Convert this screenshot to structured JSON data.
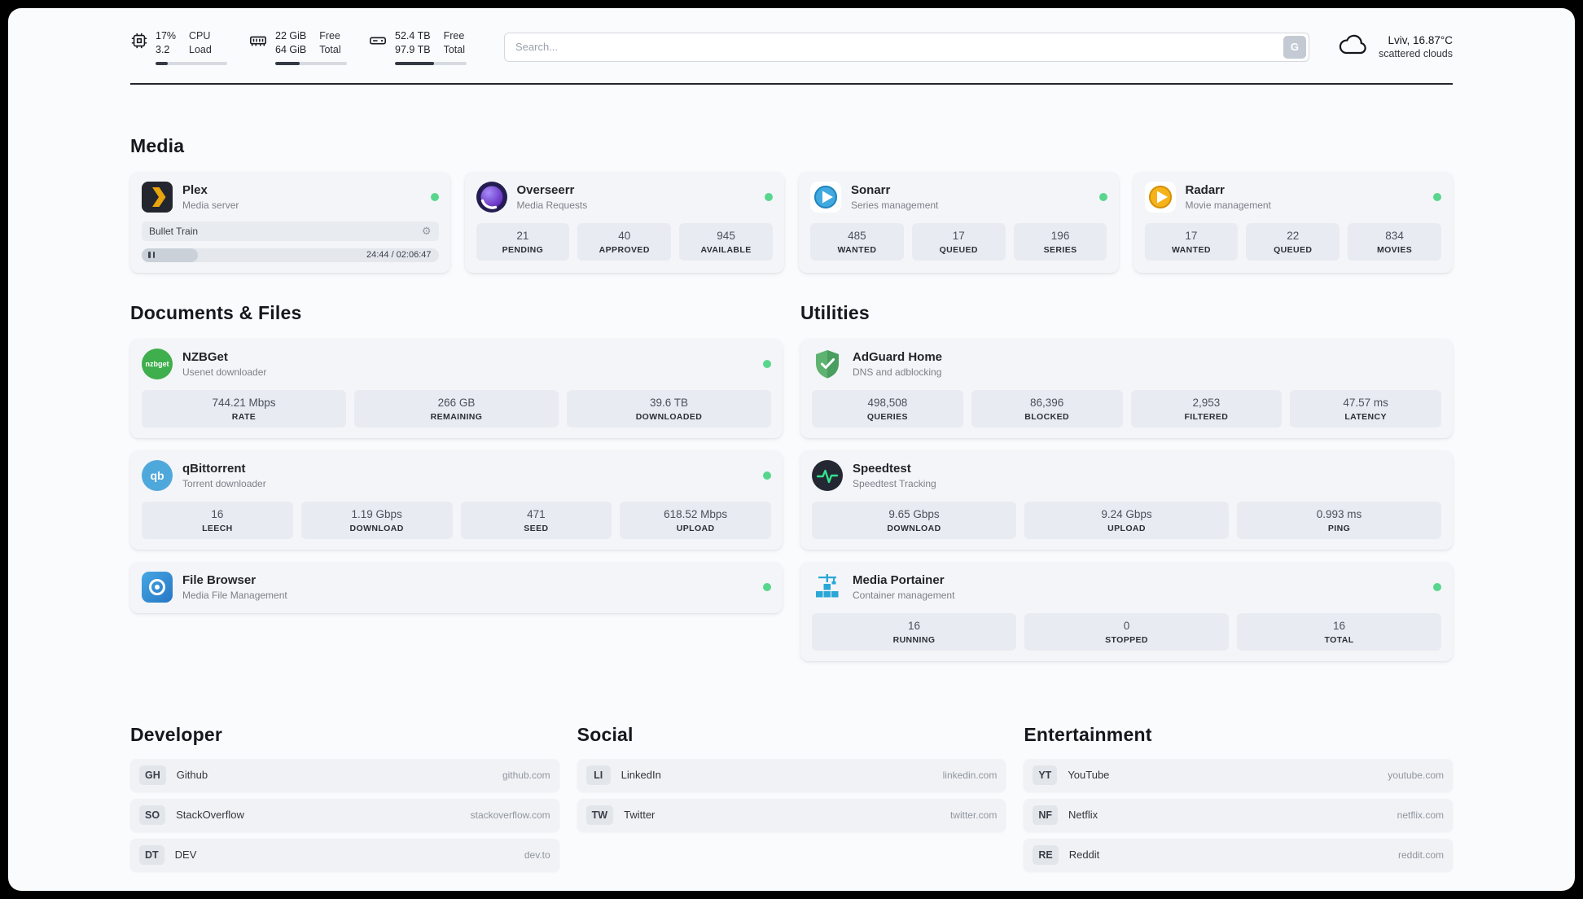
{
  "header": {
    "cpu": {
      "value_top": "17%",
      "value_bottom": "3.2",
      "label_top": "CPU",
      "label_bottom": "Load",
      "progress_percent": 17
    },
    "ram": {
      "value_top": "22 GiB",
      "value_bottom": "64 GiB",
      "label_top": "Free",
      "label_bottom": "Total",
      "progress_percent": 34
    },
    "disk": {
      "value_top": "52.4 TB",
      "value_bottom": "97.9 TB",
      "label_top": "Free",
      "label_bottom": "Total",
      "progress_percent": 54
    },
    "search": {
      "placeholder": "Search...",
      "provider_label": "G"
    },
    "weather": {
      "location": "Lviv, 16.87°C",
      "condition": "scattered clouds"
    }
  },
  "media": {
    "heading": "Media",
    "plex": {
      "name": "Plex",
      "description": "Media server",
      "now_playing": "Bullet Train",
      "time_display": "24:44 / 02:06:47",
      "progress_percent": 19
    },
    "cards": [
      {
        "name": "Overseerr",
        "description": "Media Requests",
        "stats": [
          {
            "value": "21",
            "label": "PENDING"
          },
          {
            "value": "40",
            "label": "APPROVED"
          },
          {
            "value": "945",
            "label": "AVAILABLE"
          }
        ]
      },
      {
        "name": "Sonarr",
        "description": "Series management",
        "stats": [
          {
            "value": "485",
            "label": "WANTED"
          },
          {
            "value": "17",
            "label": "QUEUED"
          },
          {
            "value": "196",
            "label": "SERIES"
          }
        ]
      },
      {
        "name": "Radarr",
        "description": "Movie management",
        "stats": [
          {
            "value": "17",
            "label": "WANTED"
          },
          {
            "value": "22",
            "label": "QUEUED"
          },
          {
            "value": "834",
            "label": "MOVIES"
          }
        ]
      }
    ]
  },
  "documents": {
    "heading": "Documents & Files",
    "cards": [
      {
        "name": "NZBGet",
        "description": "Usenet downloader",
        "stats": [
          {
            "value": "744.21 Mbps",
            "label": "RATE"
          },
          {
            "value": "266 GB",
            "label": "REMAINING"
          },
          {
            "value": "39.6 TB",
            "label": "DOWNLOADED"
          }
        ]
      },
      {
        "name": "qBittorrent",
        "description": "Torrent downloader",
        "stats": [
          {
            "value": "16",
            "label": "LEECH"
          },
          {
            "value": "1.19 Gbps",
            "label": "DOWNLOAD"
          },
          {
            "value": "471",
            "label": "SEED"
          },
          {
            "value": "618.52 Mbps",
            "label": "UPLOAD"
          }
        ]
      },
      {
        "name": "File Browser",
        "description": "Media File Management",
        "stats": []
      }
    ]
  },
  "utilities": {
    "heading": "Utilities",
    "cards": [
      {
        "name": "AdGuard Home",
        "description": "DNS and adblocking",
        "stats": [
          {
            "value": "498,508",
            "label": "QUERIES"
          },
          {
            "value": "86,396",
            "label": "BLOCKED"
          },
          {
            "value": "2,953",
            "label": "FILTERED"
          },
          {
            "value": "47.57 ms",
            "label": "LATENCY"
          }
        ]
      },
      {
        "name": "Speedtest",
        "description": "Speedtest Tracking",
        "stats": [
          {
            "value": "9.65 Gbps",
            "label": "DOWNLOAD"
          },
          {
            "value": "9.24 Gbps",
            "label": "UPLOAD"
          },
          {
            "value": "0.993 ms",
            "label": "PING"
          }
        ]
      },
      {
        "name": "Media Portainer",
        "description": "Container management",
        "stats": [
          {
            "value": "16",
            "label": "RUNNING"
          },
          {
            "value": "0",
            "label": "STOPPED"
          },
          {
            "value": "16",
            "label": "TOTAL"
          }
        ]
      }
    ]
  },
  "links": {
    "columns": [
      {
        "heading": "Developer",
        "items": [
          {
            "tag": "GH",
            "name": "Github",
            "url": "github.com"
          },
          {
            "tag": "SO",
            "name": "StackOverflow",
            "url": "stackoverflow.com"
          },
          {
            "tag": "DT",
            "name": "DEV",
            "url": "dev.to"
          }
        ]
      },
      {
        "heading": "Social",
        "items": [
          {
            "tag": "LI",
            "name": "LinkedIn",
            "url": "linkedin.com"
          },
          {
            "tag": "TW",
            "name": "Twitter",
            "url": "twitter.com"
          }
        ]
      },
      {
        "heading": "Entertainment",
        "items": [
          {
            "tag": "YT",
            "name": "YouTube",
            "url": "youtube.com"
          },
          {
            "tag": "NF",
            "name": "Netflix",
            "url": "netflix.com"
          },
          {
            "tag": "RE",
            "name": "Reddit",
            "url": "reddit.com"
          }
        ]
      }
    ]
  },
  "colors": {
    "status_online": "#58d68d",
    "accent_dark": "#23262d",
    "card_bg": "#f4f5f8",
    "stat_bg": "#e8ebf1"
  }
}
